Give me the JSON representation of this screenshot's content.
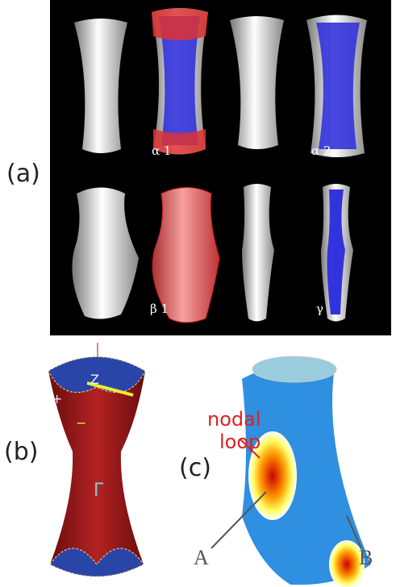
{
  "panel_a": {
    "label": "(a)",
    "captions": [
      "α 1",
      "α 2",
      "β 1",
      "γ"
    ]
  },
  "panel_b": {
    "label": "(b)",
    "marks": [
      "Z",
      "+",
      "−",
      "Γ"
    ]
  },
  "panel_c": {
    "label": "(c)",
    "annotation": [
      "nodal",
      "loop"
    ],
    "points": [
      "A",
      "B"
    ]
  }
}
